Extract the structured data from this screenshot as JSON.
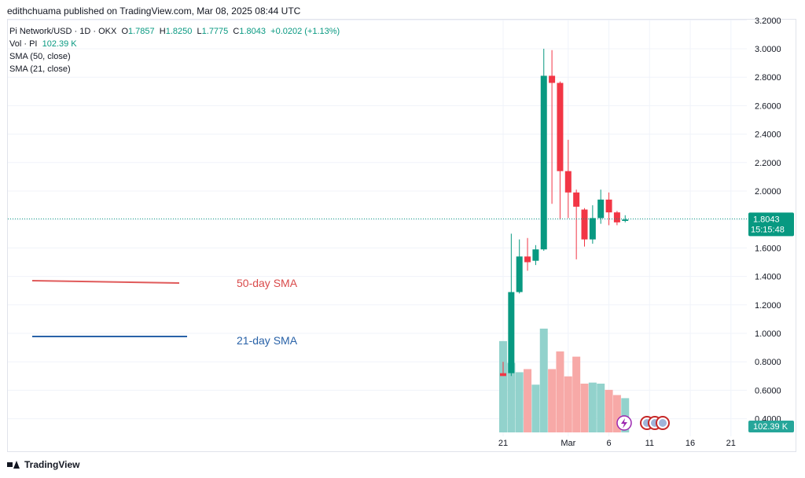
{
  "header": {
    "credit": "edithchuama published on TradingView.com, Mar 08, 2025 08:44 UTC"
  },
  "legend": {
    "symbol": "Pi Network/USD · 1D · OKX",
    "open_label": "O",
    "open": "1.7857",
    "high_label": "H",
    "high": "1.8250",
    "low_label": "L",
    "low": "1.7775",
    "close_label": "C",
    "close": "1.8043",
    "change": "+0.0202 (+1.13%)",
    "volume_label": "Vol · PI",
    "volume": "102.39 K",
    "sma50": "SMA (50, close)",
    "sma21": "SMA (21, close)"
  },
  "annotations": {
    "sma50_label": "50-day SMA",
    "sma21_label": "21-day SMA"
  },
  "price_badge": {
    "price": "1.8043",
    "countdown": "15:15:48"
  },
  "volume_badge": "102.39 K",
  "footer": {
    "brand": "TradingView"
  },
  "colors": {
    "up": "#089981",
    "down": "#f23645",
    "up_volume": "#92d2cc",
    "down_volume": "#f7a9a7",
    "sma50": "#e05a5a",
    "sma21": "#2962a8"
  },
  "chart_data": {
    "type": "candlestick",
    "y_ticks": [
      "3.2000",
      "3.0000",
      "2.8000",
      "2.6000",
      "2.4000",
      "2.2000",
      "2.0000",
      "1.8000",
      "1.6000",
      "1.4000",
      "1.2000",
      "1.0000",
      "0.8000",
      "0.6000",
      "0.4000"
    ],
    "ylim": [
      0.3,
      3.2
    ],
    "x_ticks": [
      {
        "label": "21",
        "index": 0
      },
      {
        "label": "Mar",
        "index": 8
      },
      {
        "label": "6",
        "index": 13
      },
      {
        "label": "11",
        "index": 18
      },
      {
        "label": "16",
        "index": 23
      },
      {
        "label": "21",
        "index": 28
      }
    ],
    "candles": [
      {
        "o": 0.72,
        "h": 0.8,
        "l": 0.7,
        "c": 0.7
      },
      {
        "o": 0.72,
        "h": 1.7,
        "l": 0.7,
        "c": 1.29
      },
      {
        "o": 1.29,
        "h": 1.66,
        "l": 1.28,
        "c": 1.54
      },
      {
        "o": 1.54,
        "h": 1.67,
        "l": 1.44,
        "c": 1.5
      },
      {
        "o": 1.51,
        "h": 1.62,
        "l": 1.48,
        "c": 1.59
      },
      {
        "o": 1.59,
        "h": 3.0,
        "l": 1.58,
        "c": 2.81
      },
      {
        "o": 2.81,
        "h": 2.99,
        "l": 1.91,
        "c": 2.76
      },
      {
        "o": 2.76,
        "h": 2.77,
        "l": 1.8,
        "c": 2.14
      },
      {
        "o": 2.14,
        "h": 2.36,
        "l": 1.81,
        "c": 1.99
      },
      {
        "o": 1.99,
        "h": 2.01,
        "l": 1.52,
        "c": 1.89
      },
      {
        "o": 1.87,
        "h": 1.88,
        "l": 1.61,
        "c": 1.66
      },
      {
        "o": 1.66,
        "h": 1.9,
        "l": 1.63,
        "c": 1.81
      },
      {
        "o": 1.81,
        "h": 2.01,
        "l": 1.77,
        "c": 1.94
      },
      {
        "o": 1.94,
        "h": 1.99,
        "l": 1.76,
        "c": 1.85
      },
      {
        "o": 1.85,
        "h": 1.86,
        "l": 1.76,
        "c": 1.78
      },
      {
        "o": 1.79,
        "h": 1.83,
        "l": 1.78,
        "c": 1.8
      }
    ],
    "volume": [
      {
        "v": 0.88,
        "dir": "up"
      },
      {
        "v": 0.67,
        "dir": "up"
      },
      {
        "v": 0.58,
        "dir": "up"
      },
      {
        "v": 0.61,
        "dir": "down"
      },
      {
        "v": 0.46,
        "dir": "up"
      },
      {
        "v": 1.0,
        "dir": "up"
      },
      {
        "v": 0.61,
        "dir": "down"
      },
      {
        "v": 0.78,
        "dir": "down"
      },
      {
        "v": 0.54,
        "dir": "down"
      },
      {
        "v": 0.73,
        "dir": "down"
      },
      {
        "v": 0.47,
        "dir": "down"
      },
      {
        "v": 0.48,
        "dir": "up"
      },
      {
        "v": 0.47,
        "dir": "up"
      },
      {
        "v": 0.41,
        "dir": "down"
      },
      {
        "v": 0.36,
        "dir": "down"
      },
      {
        "v": 0.33,
        "dir": "up"
      }
    ]
  }
}
